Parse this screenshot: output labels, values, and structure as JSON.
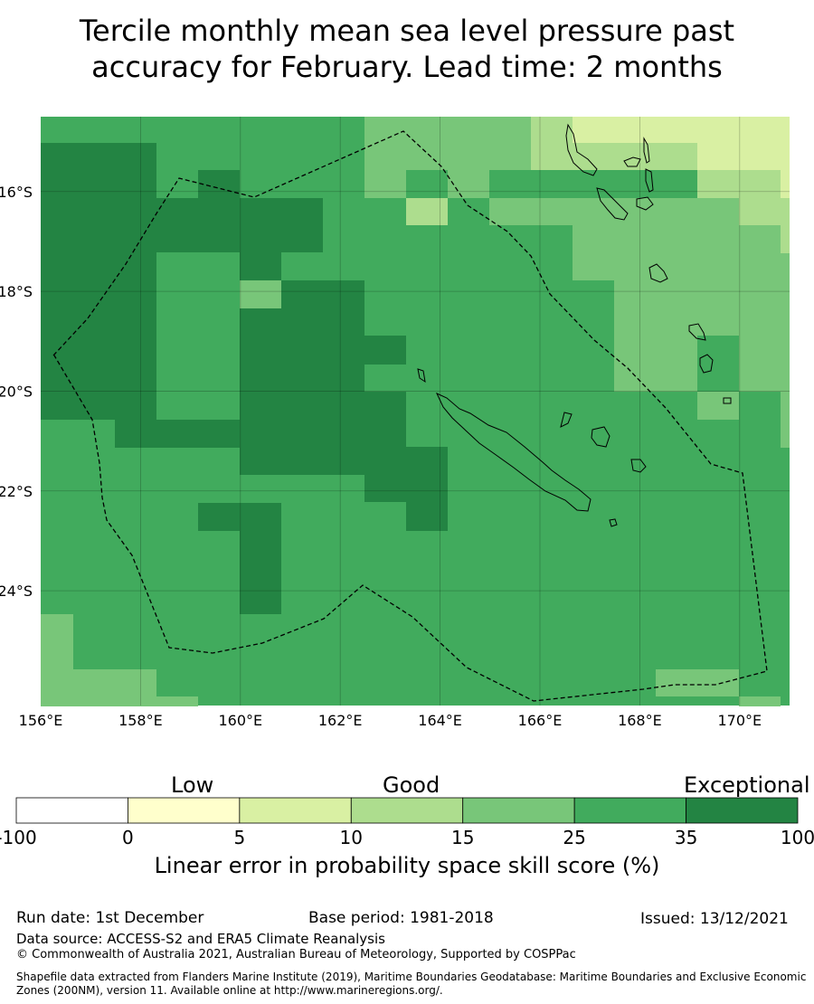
{
  "title_line1": "Tercile monthly mean sea level pressure past",
  "title_line2": "accuracy for February. Lead time: 2 months",
  "map": {
    "lon_range": [
      156.0,
      171.0
    ],
    "lat_range": [
      -26.3,
      -14.5
    ],
    "lon_ticks": [
      "156°E",
      "158°E",
      "160°E",
      "162°E",
      "164°E",
      "166°E",
      "168°E",
      "170°E"
    ],
    "lat_ticks": [
      "16°S",
      "18°S",
      "20°S",
      "22°S",
      "24°S"
    ],
    "gridlines": true
  },
  "legend": {
    "category_labels": [
      "Low",
      "Good",
      "Exceptional"
    ],
    "boundaries": [
      "-100",
      "0",
      "5",
      "10",
      "15",
      "25",
      "35",
      "100"
    ],
    "colors": [
      "#ffffff",
      "#ffffcc",
      "#d9f0a3",
      "#addd8e",
      "#78c679",
      "#41ab5d",
      "#238443"
    ],
    "title": "Linear error in probability space skill score (%)"
  },
  "footer": {
    "run_date": "Run date: 1st December",
    "base_period": "Base period: 1981-2018",
    "issued": "Issued: 13/12/2021",
    "data_source": "Data source: ACCESS-S2 and ERA5 Climate Reanalysis",
    "copyright": "© Commonwealth of Australia 2021, Australian Bureau of Meteorology, Supported by COSPPac",
    "shapefile_line1": "Shapefile data extracted from Flanders Marine Institute (2019), Maritime Boundaries Geodatabase: Maritime Boundaries and Exclusive Economic",
    "shapefile_line2": "Zones (200NM), version 11. Available online at http://www.marineregions.org/."
  }
}
